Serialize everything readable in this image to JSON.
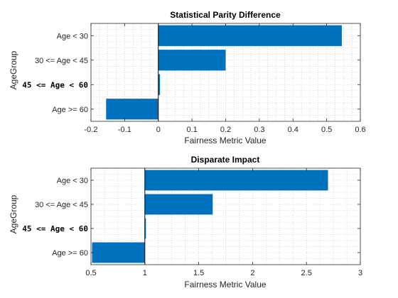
{
  "chart_data": [
    {
      "type": "bar",
      "orientation": "horizontal",
      "title": "Statistical Parity Difference",
      "xlabel": "Fairness Metric Value",
      "ylabel": "AgeGroup",
      "categories": [
        "Age < 30",
        "30 <= Age < 45",
        "45 <= Age < 60",
        "Age >= 60"
      ],
      "highlight_category": "45 <= Age < 60",
      "values": [
        0.545,
        0.2,
        0.005,
        -0.155
      ],
      "baseline": 0,
      "xlim": [
        -0.2,
        0.6
      ],
      "xticks": [
        "-0.2",
        "-0.1",
        "0",
        "0.1",
        "0.2",
        "0.3",
        "0.4",
        "0.5",
        "0.6"
      ],
      "grid": true,
      "color": "#0072BD"
    },
    {
      "type": "bar",
      "orientation": "horizontal",
      "title": "Disparate Impact",
      "xlabel": "Fairness Metric Value",
      "ylabel": "AgeGroup",
      "categories": [
        "Age < 30",
        "30 <= Age < 45",
        "45 <= Age < 60",
        "Age >= 60"
      ],
      "highlight_category": "45 <= Age < 60",
      "values": [
        2.7,
        1.63,
        1.01,
        0.51
      ],
      "baseline": 1,
      "xlim": [
        0.5,
        3
      ],
      "xticks": [
        "0.5",
        "1",
        "1.5",
        "2",
        "2.5",
        "3"
      ],
      "grid": true,
      "color": "#0072BD"
    }
  ]
}
